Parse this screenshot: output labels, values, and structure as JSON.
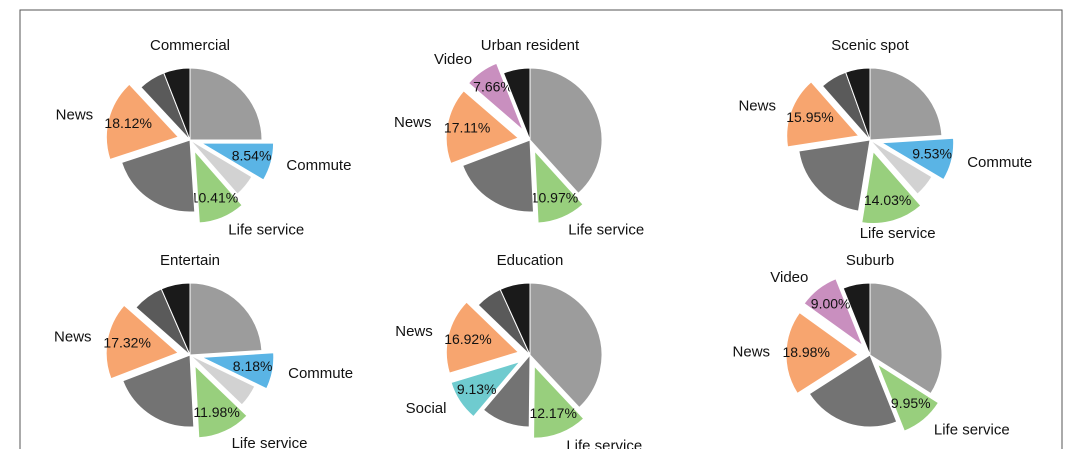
{
  "chart_data": [
    {
      "type": "pie",
      "title": "Commercial",
      "categories": [
        null,
        "Commute",
        null,
        "Life service",
        null,
        "News",
        null,
        null
      ],
      "values": [
        25,
        8.54,
        5,
        10.41,
        21,
        18.12,
        6,
        5.93
      ],
      "value_labels": [
        null,
        "8.54%",
        null,
        "10.41%",
        null,
        "18.12%",
        null,
        null
      ],
      "colors": [
        "#9c9c9c",
        "#5ab4e5",
        "#d2d2d2",
        "#98cf7d",
        "#737373",
        "#f7a56f",
        "#5a5a5a",
        "#1a1a1a"
      ],
      "exploded": [
        false,
        true,
        false,
        true,
        false,
        true,
        false,
        false
      ]
    },
    {
      "type": "pie",
      "title": "Urban resident",
      "categories": [
        null,
        "Life service",
        null,
        "News",
        "Video",
        null
      ],
      "values": [
        38.26,
        10.97,
        20,
        17.11,
        7.66,
        6
      ],
      "value_labels": [
        null,
        "10.97%",
        null,
        "17.11%",
        "7.66%",
        null
      ],
      "colors": [
        "#9c9c9c",
        "#98cf7d",
        "#737373",
        "#f7a56f",
        "#c98fbf",
        "#1a1a1a"
      ],
      "exploded": [
        false,
        true,
        false,
        true,
        true,
        false
      ]
    },
    {
      "type": "pie",
      "title": "Scenic spot",
      "categories": [
        null,
        "Commute",
        null,
        "Life service",
        null,
        "News",
        null,
        null
      ],
      "values": [
        24,
        9.53,
        5,
        14.03,
        20,
        15.95,
        6,
        5.49
      ],
      "value_labels": [
        null,
        "9.53%",
        null,
        "14.03%",
        null,
        "15.95%",
        null,
        null
      ],
      "colors": [
        "#9c9c9c",
        "#5ab4e5",
        "#d2d2d2",
        "#98cf7d",
        "#737373",
        "#f7a56f",
        "#5a5a5a",
        "#1a1a1a"
      ],
      "exploded": [
        false,
        true,
        false,
        true,
        false,
        true,
        false,
        false
      ]
    },
    {
      "type": "pie",
      "title": "Entertain",
      "categories": [
        null,
        "Commute",
        null,
        "Life service",
        null,
        "News",
        null,
        null
      ],
      "values": [
        24,
        8.18,
        5,
        11.98,
        20,
        17.32,
        7,
        6.52
      ],
      "value_labels": [
        null,
        "8.18%",
        null,
        "11.98%",
        null,
        "17.32%",
        null,
        null
      ],
      "colors": [
        "#9c9c9c",
        "#5ab4e5",
        "#d2d2d2",
        "#98cf7d",
        "#737373",
        "#f7a56f",
        "#5a5a5a",
        "#1a1a1a"
      ],
      "exploded": [
        false,
        true,
        false,
        true,
        false,
        true,
        false,
        false
      ]
    },
    {
      "type": "pie",
      "title": "Education",
      "categories": [
        null,
        "Life service",
        null,
        "Social",
        "News",
        null,
        null
      ],
      "values": [
        38,
        12.17,
        11,
        9.13,
        16.92,
        6,
        6.78
      ],
      "value_labels": [
        null,
        "12.17%",
        null,
        "9.13%",
        "16.92%",
        null,
        null
      ],
      "colors": [
        "#9c9c9c",
        "#98cf7d",
        "#737373",
        "#6fcbcf",
        "#f7a56f",
        "#5a5a5a",
        "#1a1a1a"
      ],
      "exploded": [
        false,
        true,
        false,
        true,
        true,
        false,
        false
      ]
    },
    {
      "type": "pie",
      "title": "Suburb",
      "categories": [
        null,
        "Life service",
        null,
        "News",
        "Video",
        null
      ],
      "values": [
        34,
        9.95,
        22,
        18.98,
        9,
        6.07
      ],
      "value_labels": [
        null,
        "9.95%",
        null,
        "18.98%",
        "9.00%",
        null
      ],
      "colors": [
        "#9c9c9c",
        "#98cf7d",
        "#737373",
        "#f7a56f",
        "#c98fbf",
        "#1a1a1a"
      ],
      "exploded": [
        false,
        true,
        false,
        true,
        true,
        false
      ]
    }
  ]
}
